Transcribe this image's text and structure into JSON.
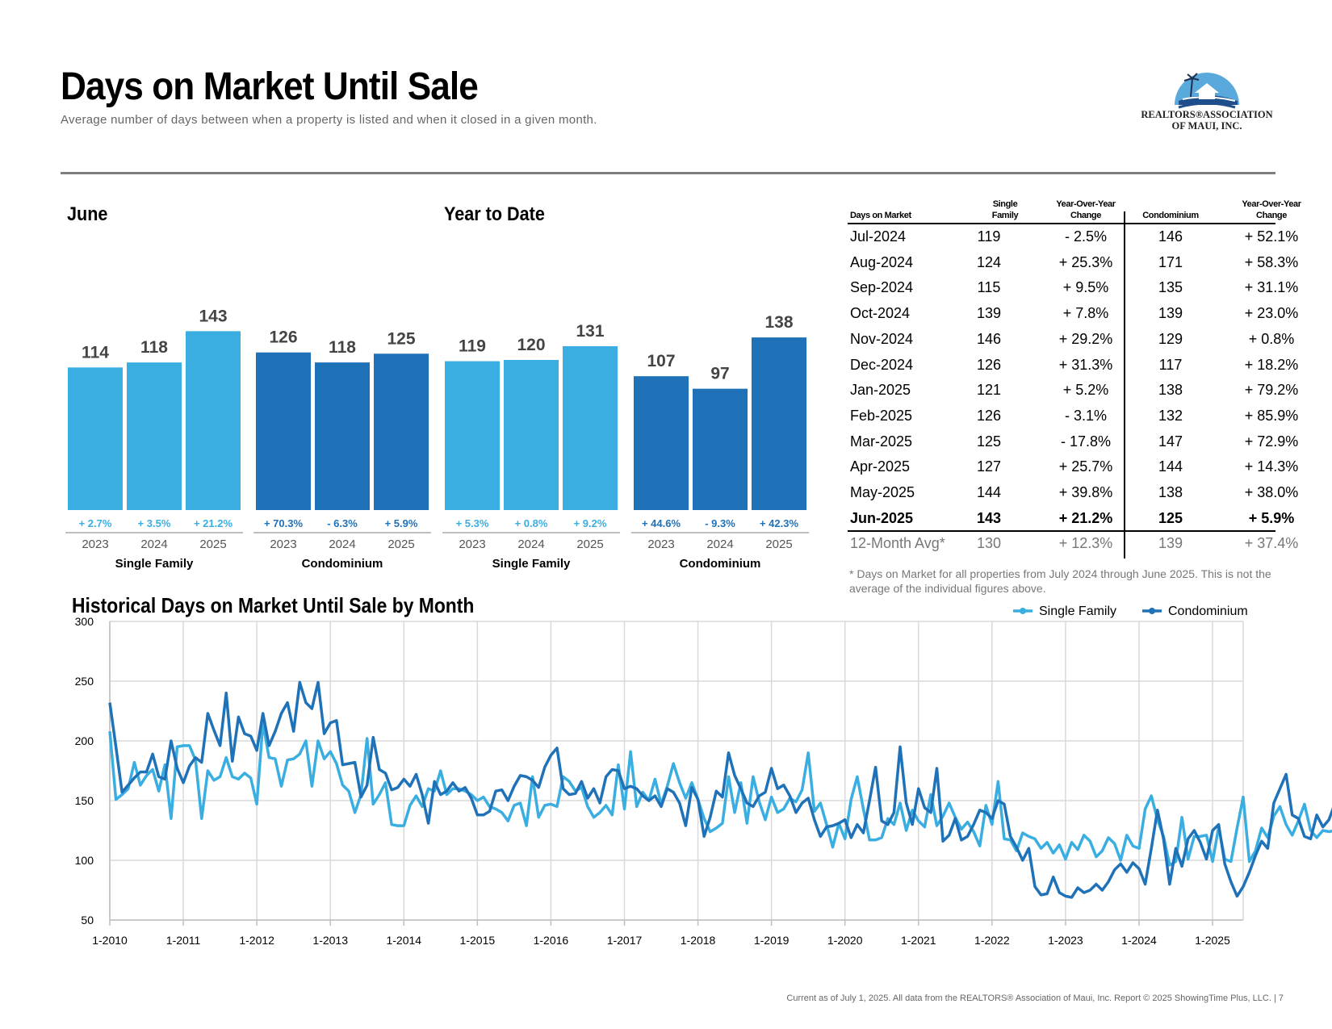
{
  "header": {
    "title": "Days on Market Until Sale",
    "subtitle": "Average number of days between when a property is listed and when it closed in a given month.",
    "logo_line1": "REALTORS®ASSOCIATION",
    "logo_line2": "OF MAUI, INC."
  },
  "colors": {
    "single_family": "#3aaee0",
    "condominium": "#1f72b8"
  },
  "sections": {
    "june_label": "June",
    "ytd_label": "Year to Date",
    "historical_title": "Historical Days on Market Until Sale by Month"
  },
  "table": {
    "headers": {
      "days": "Days on Market",
      "sf": [
        "Single",
        "Family"
      ],
      "sf_change": [
        "Year-Over-Year",
        "Change"
      ],
      "condo": "Condominium",
      "condo_change": [
        "Year-Over-Year",
        "Change"
      ]
    },
    "rows": [
      [
        "Jul-2024",
        "119",
        "- 2.5%",
        "146",
        "+ 52.1%"
      ],
      [
        "Aug-2024",
        "124",
        "+ 25.3%",
        "171",
        "+ 58.3%"
      ],
      [
        "Sep-2024",
        "115",
        "+ 9.5%",
        "135",
        "+ 31.1%"
      ],
      [
        "Oct-2024",
        "139",
        "+ 7.8%",
        "139",
        "+ 23.0%"
      ],
      [
        "Nov-2024",
        "146",
        "+ 29.2%",
        "129",
        "+ 0.8%"
      ],
      [
        "Dec-2024",
        "126",
        "+ 31.3%",
        "117",
        "+ 18.2%"
      ],
      [
        "Jan-2025",
        "121",
        "+ 5.2%",
        "138",
        "+ 79.2%"
      ],
      [
        "Feb-2025",
        "126",
        "- 3.1%",
        "132",
        "+ 85.9%"
      ],
      [
        "Mar-2025",
        "125",
        "- 17.8%",
        "147",
        "+ 72.9%"
      ],
      [
        "Apr-2025",
        "127",
        "+ 25.7%",
        "144",
        "+ 14.3%"
      ],
      [
        "May-2025",
        "144",
        "+ 39.8%",
        "138",
        "+ 38.0%"
      ],
      [
        "Jun-2025",
        "143",
        "+ 21.2%",
        "125",
        "+ 5.9%"
      ]
    ],
    "avg_row": [
      "12-Month Avg*",
      "130",
      "+ 12.3%",
      "139",
      "+ 37.4%"
    ],
    "footnote": "* Days on Market for all properties from July 2024 through June 2025. This is not the average of the individual figures above."
  },
  "footer": "Current as of July 1, 2025. All data from the REALTORS® Association of Maui, Inc. Report © 2025 ShowingTime Plus, LLC.  |  7",
  "chart_data": [
    {
      "type": "bar",
      "title": "June",
      "groups": [
        {
          "name": "Single Family",
          "categories": [
            "2023",
            "2024",
            "2025"
          ],
          "values": [
            114,
            118,
            143
          ],
          "changes": [
            "+ 2.7%",
            "+ 3.5%",
            "+ 21.2%"
          ]
        },
        {
          "name": "Condominium",
          "categories": [
            "2023",
            "2024",
            "2025"
          ],
          "values": [
            126,
            118,
            125
          ],
          "changes": [
            "+ 70.3%",
            "- 6.3%",
            "+ 5.9%"
          ]
        }
      ]
    },
    {
      "type": "bar",
      "title": "Year to Date",
      "groups": [
        {
          "name": "Single Family",
          "categories": [
            "2023",
            "2024",
            "2025"
          ],
          "values": [
            119,
            120,
            131
          ],
          "changes": [
            "+ 5.3%",
            "+ 0.8%",
            "+ 9.2%"
          ]
        },
        {
          "name": "Condominium",
          "categories": [
            "2023",
            "2024",
            "2025"
          ],
          "values": [
            107,
            97,
            138
          ],
          "changes": [
            "+ 44.6%",
            "- 9.3%",
            "+ 42.3%"
          ]
        }
      ]
    },
    {
      "type": "line",
      "title": "Historical Days on Market Until Sale by Month",
      "ylim": [
        50,
        300
      ],
      "yticks": [
        50,
        100,
        150,
        200,
        250,
        300
      ],
      "xticks": [
        "1-2010",
        "1-2011",
        "1-2012",
        "1-2013",
        "1-2014",
        "1-2015",
        "1-2016",
        "1-2017",
        "1-2018",
        "1-2019",
        "1-2020",
        "1-2021",
        "1-2022",
        "1-2023",
        "1-2024",
        "1-2025"
      ],
      "x_start": "1-2010",
      "x_end": "6-2025",
      "legend": [
        "Single Family",
        "Condominium"
      ],
      "legend_position": "top-right",
      "grid": true,
      "series": [
        {
          "name": "Single Family",
          "values": [
            208,
            151,
            155,
            160,
            182,
            163,
            171,
            176,
            158,
            180,
            135,
            195,
            196,
            196,
            184,
            135,
            175,
            167,
            170,
            186,
            170,
            168,
            173,
            169,
            147,
            215,
            186,
            185,
            162,
            184,
            185,
            189,
            200,
            162,
            200,
            185,
            191,
            181,
            163,
            158,
            140,
            155,
            202,
            147,
            155,
            165,
            130,
            129,
            129,
            146,
            154,
            145,
            160,
            158,
            175,
            155,
            160,
            160,
            158,
            155,
            150,
            153,
            145,
            143,
            140,
            133,
            146,
            148,
            129,
            170,
            136,
            146,
            147,
            145,
            170,
            166,
            158,
            161,
            145,
            136,
            140,
            146,
            138,
            180,
            143,
            191,
            145,
            157,
            150,
            168,
            147,
            162,
            181,
            165,
            152,
            165,
            151,
            135,
            124,
            127,
            131,
            170,
            140,
            165,
            131,
            170,
            149,
            134,
            153,
            140,
            143,
            152,
            149,
            159,
            190,
            141,
            148,
            130,
            111,
            131,
            118,
            151,
            170,
            143,
            117,
            117,
            119,
            135,
            130,
            148,
            125,
            142,
            133,
            128,
            155,
            129,
            137,
            148,
            136,
            126,
            132,
            124,
            112,
            146,
            130,
            166,
            118,
            117,
            108,
            123,
            120,
            118,
            110,
            115,
            106,
            113,
            101,
            115,
            109,
            121,
            116,
            103,
            108,
            119,
            114,
            100,
            121,
            112,
            110,
            143,
            154,
            134,
            120,
            96,
            99,
            136,
            101,
            120,
            120,
            121,
            99,
            128,
            101,
            99,
            127,
            153,
            99,
            108,
            127,
            119,
            137,
            145,
            130,
            121,
            133,
            147,
            125,
            119,
            125,
            124,
            125,
            126,
            143,
            145,
            143
          ]
        },
        {
          "name": "Condominium",
          "values": [
            232,
            195,
            157,
            163,
            169,
            174,
            174,
            189,
            170,
            168,
            200,
            177,
            165,
            179,
            186,
            182,
            223,
            209,
            196,
            240,
            183,
            220,
            206,
            204,
            192,
            223,
            196,
            208,
            223,
            232,
            208,
            249,
            232,
            227,
            249,
            206,
            215,
            217,
            180,
            181,
            182,
            153,
            163,
            203,
            176,
            173,
            159,
            161,
            168,
            162,
            172,
            155,
            131,
            166,
            155,
            158,
            165,
            158,
            161,
            152,
            138,
            138,
            141,
            158,
            159,
            150,
            162,
            171,
            170,
            167,
            161,
            178,
            188,
            194,
            160,
            155,
            156,
            166,
            152,
            160,
            148,
            170,
            176,
            175,
            160,
            162,
            160,
            154,
            150,
            154,
            145,
            160,
            157,
            148,
            129,
            161,
            151,
            120,
            136,
            158,
            153,
            190,
            171,
            160,
            148,
            145,
            154,
            157,
            177,
            160,
            163,
            154,
            140,
            148,
            152,
            134,
            120,
            128,
            129,
            131,
            134,
            119,
            130,
            123,
            150,
            178,
            133,
            130,
            140,
            195,
            148,
            130,
            160,
            144,
            140,
            177,
            116,
            121,
            135,
            117,
            120,
            130,
            142,
            140,
            135,
            150,
            147,
            120,
            111,
            100,
            110,
            78,
            71,
            72,
            86,
            73,
            70,
            69,
            77,
            73,
            75,
            80,
            75,
            82,
            92,
            97,
            90,
            98,
            93,
            80,
            110,
            142,
            118,
            80,
            110,
            95,
            118,
            125,
            115,
            101,
            125,
            130,
            97,
            82,
            70,
            78,
            90,
            104,
            116,
            110,
            148,
            160,
            172,
            138,
            135,
            120,
            118,
            138,
            128,
            134,
            148,
            142,
            142,
            140,
            125
          ]
        }
      ]
    }
  ]
}
